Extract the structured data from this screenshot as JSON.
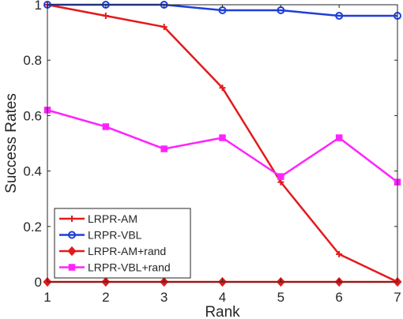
{
  "chart_data": {
    "type": "line",
    "title": "",
    "xlabel": "Rank",
    "ylabel": "Success Rates",
    "xlim": [
      1,
      7
    ],
    "ylim": [
      0,
      1
    ],
    "x": [
      1,
      2,
      3,
      4,
      5,
      6,
      7
    ],
    "xticks": [
      "1",
      "2",
      "3",
      "4",
      "5",
      "6",
      "7"
    ],
    "yticks": [
      "0",
      "0.2",
      "0.4",
      "0.6",
      "0.8",
      "1"
    ],
    "ytick_values": [
      0,
      0.2,
      0.4,
      0.6,
      0.8,
      1
    ],
    "grid": false,
    "legend_position": "bottom-left",
    "series": [
      {
        "name": "LRPR-AM",
        "color": "#e31a1c",
        "marker": "plus",
        "values": [
          1.0,
          0.96,
          0.92,
          0.7,
          0.36,
          0.1,
          0.0
        ]
      },
      {
        "name": "LRPR-VBL",
        "color": "#1f3fd6",
        "marker": "circle",
        "values": [
          1.0,
          1.0,
          1.0,
          0.98,
          0.98,
          0.96,
          0.96
        ]
      },
      {
        "name": "LRPR-AM+rand",
        "color": "#e31a1c",
        "marker": "diamond",
        "values": [
          0.0,
          0.0,
          0.0,
          0.0,
          0.0,
          0.0,
          0.0
        ]
      },
      {
        "name": "LRPR-VBL+rand",
        "color": "#ff22ff",
        "marker": "square",
        "values": [
          0.62,
          0.56,
          0.48,
          0.52,
          0.38,
          0.52,
          0.36
        ]
      }
    ]
  }
}
